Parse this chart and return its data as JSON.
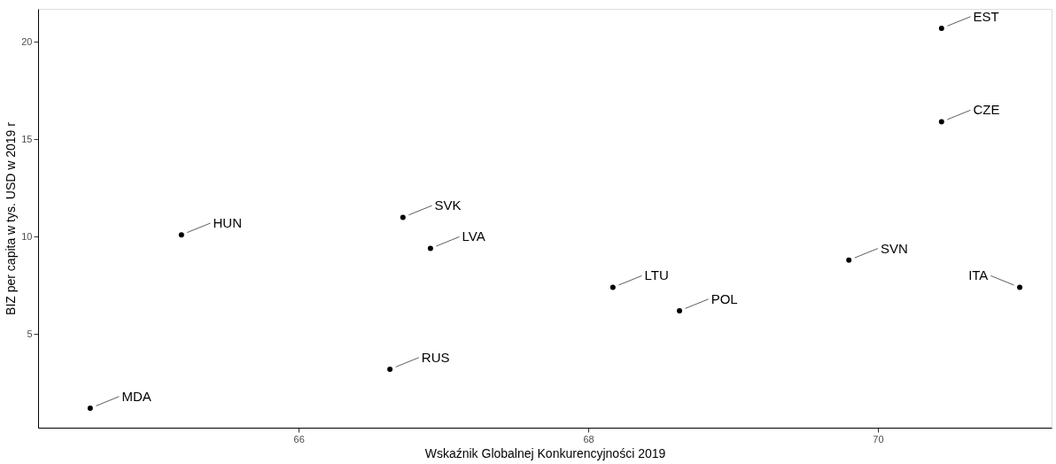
{
  "chart_data": {
    "type": "scatter",
    "xlabel": "Wskaźnik Globalnej Konkurencyjności 2019",
    "ylabel": "BIZ per capita w tys. USD w 2019 r",
    "x": [
      64.56,
      65.19,
      66.72,
      66.91,
      66.63,
      68.17,
      68.63,
      69.8,
      70.44,
      70.44,
      70.98
    ],
    "series": [
      {
        "color": "#000000",
        "values": [
          1.2,
          10.1,
          11.0,
          9.4,
          3.2,
          7.4,
          6.2,
          8.8,
          15.9,
          20.7,
          7.4
        ]
      }
    ],
    "annotations": [
      {
        "text": "MDA",
        "x": 64.56,
        "y": 1.2
      },
      {
        "text": "HUN",
        "x": 65.19,
        "y": 10.1
      },
      {
        "text": "SVK",
        "x": 66.72,
        "y": 11.0
      },
      {
        "text": "LVA",
        "x": 66.91,
        "y": 9.4
      },
      {
        "text": "RUS",
        "x": 66.63,
        "y": 3.2
      },
      {
        "text": "LTU",
        "x": 68.17,
        "y": 7.4
      },
      {
        "text": "POL",
        "x": 68.63,
        "y": 6.2
      },
      {
        "text": "SVN",
        "x": 69.8,
        "y": 8.8
      },
      {
        "text": "CZE",
        "x": 70.44,
        "y": 15.9
      },
      {
        "text": "EST",
        "x": 70.44,
        "y": 20.7
      },
      {
        "text": "ITA",
        "x": 70.98,
        "y": 7.4
      }
    ],
    "xlim": [
      64.2,
      71.2
    ],
    "ylim": [
      0.2,
      21.7
    ],
    "xticks": [
      66,
      68,
      70
    ],
    "yticks": [
      5,
      10,
      15,
      20
    ],
    "marker": "circle"
  }
}
